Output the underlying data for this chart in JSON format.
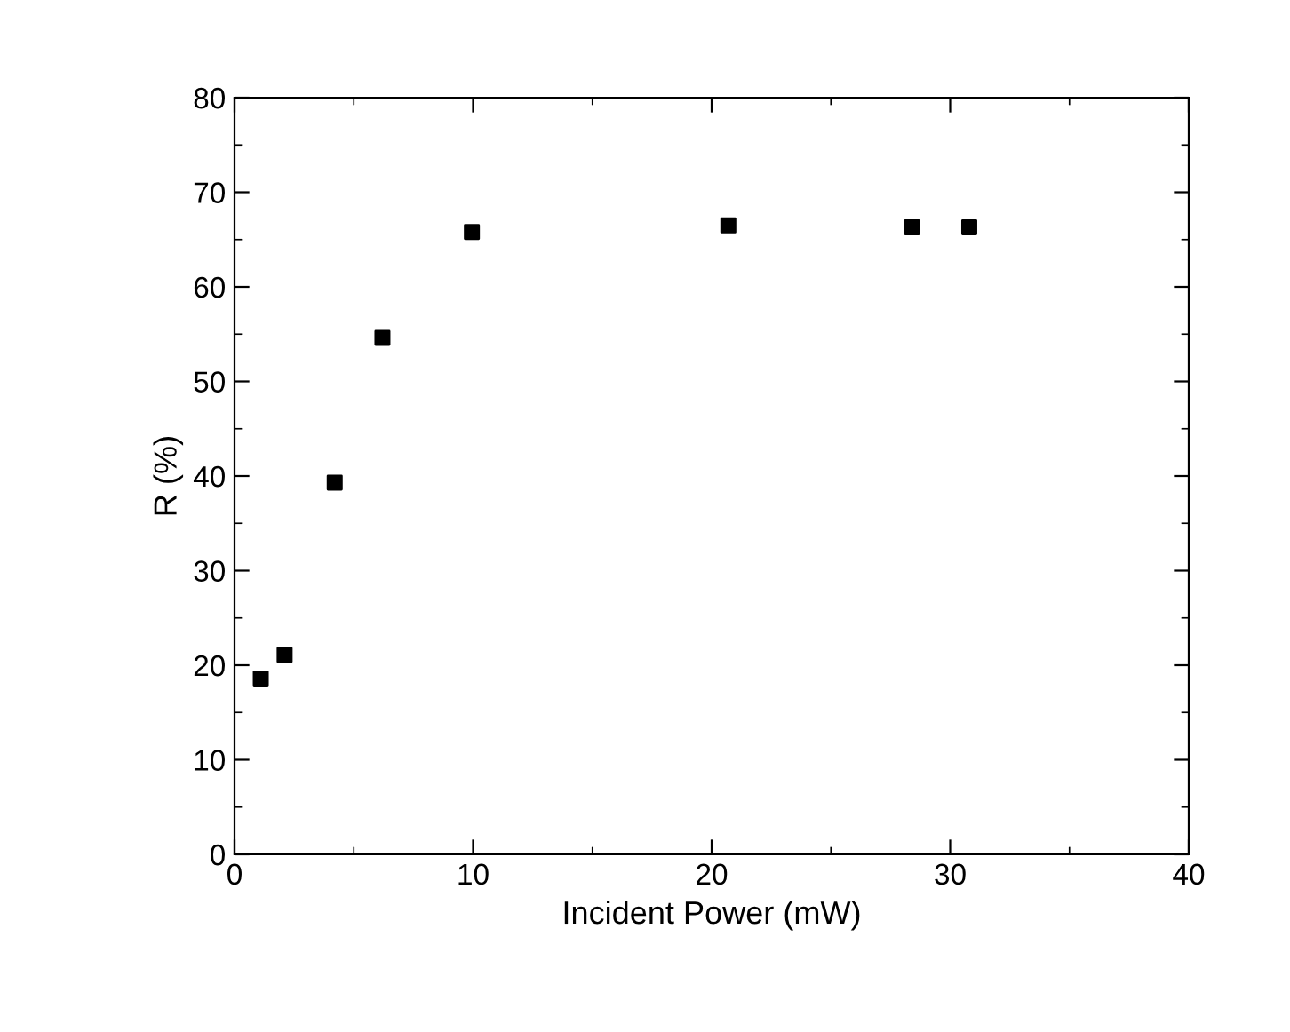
{
  "chart_data": {
    "type": "scatter",
    "xlabel": "Incident Power (mW)",
    "ylabel": "R (%)",
    "x": [
      1.1,
      2.1,
      4.2,
      6.2,
      9.95,
      20.7,
      28.4,
      30.8
    ],
    "series": [
      {
        "color": "#000000",
        "values": [
          18.6,
          21.1,
          39.3,
          54.6,
          65.8,
          66.5,
          66.3,
          66.3
        ]
      }
    ],
    "xlim": [
      0,
      40
    ],
    "xticks": [
      0,
      10,
      20,
      30,
      40
    ],
    "ylim": [
      0,
      80
    ],
    "yticks": [
      0,
      10,
      20,
      30,
      40,
      50,
      60,
      70,
      80
    ],
    "marker": "square",
    "grid": false
  }
}
